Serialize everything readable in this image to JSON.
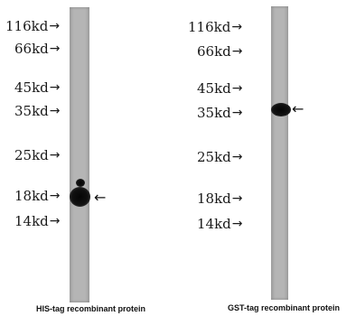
{
  "left_panel": {
    "markers": [
      {
        "label": "116kd",
        "arrow": "→"
      },
      {
        "label": "66kd",
        "arrow": "→"
      },
      {
        "label": "45kd",
        "arrow": "→"
      },
      {
        "label": "35kd",
        "arrow": "→"
      },
      {
        "label": "25kd",
        "arrow": "→"
      },
      {
        "label": "18kd",
        "arrow": "→"
      },
      {
        "label": "14kd",
        "arrow": "→"
      }
    ],
    "band_pointer": "←",
    "caption": "HIS-tag recombinant protein"
  },
  "right_panel": {
    "markers": [
      {
        "label": "116kd",
        "arrow": "→"
      },
      {
        "label": "66kd",
        "arrow": "→"
      },
      {
        "label": "45kd",
        "arrow": "→"
      },
      {
        "label": "35kd",
        "arrow": "→"
      },
      {
        "label": "25kd",
        "arrow": "→"
      },
      {
        "label": "18kd",
        "arrow": "→"
      },
      {
        "label": "14kd",
        "arrow": "→"
      }
    ],
    "band_pointer": "←",
    "caption": "GST-tag recombinant protein"
  },
  "colors": {
    "lane": "#b5b5b5",
    "band": "#0a0a0a",
    "text": "#1a1a1a"
  }
}
